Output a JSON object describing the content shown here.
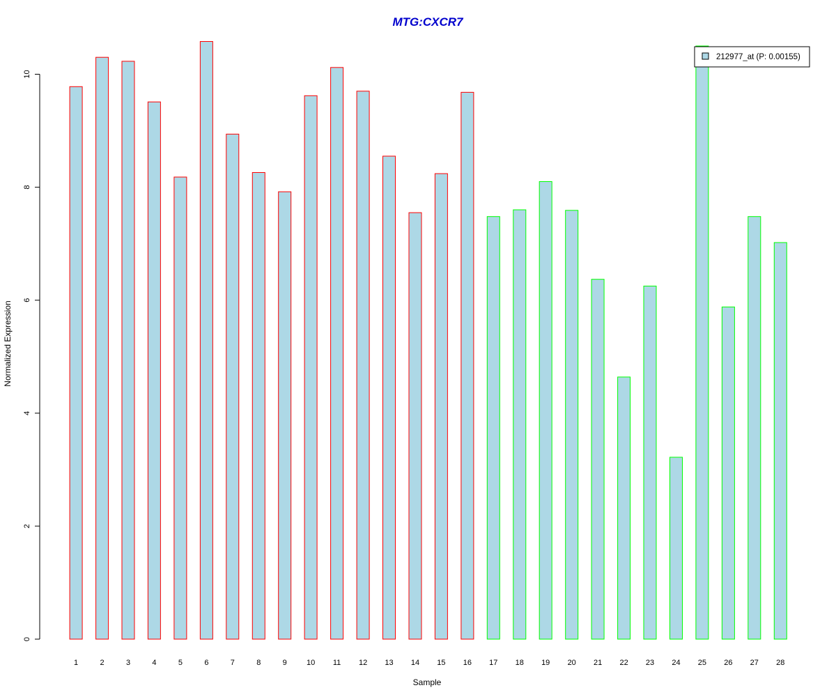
{
  "chart_data": {
    "type": "bar",
    "title": "MTG:CXCR7",
    "xlabel": "Sample",
    "ylabel": "Normalized Expression",
    "ylim": [
      0,
      10.6
    ],
    "yticks": [
      0,
      2,
      4,
      6,
      8,
      10
    ],
    "categories": [
      "1",
      "2",
      "3",
      "4",
      "5",
      "6",
      "7",
      "8",
      "9",
      "10",
      "11",
      "12",
      "13",
      "14",
      "15",
      "16",
      "17",
      "18",
      "19",
      "20",
      "21",
      "22",
      "23",
      "24",
      "25",
      "26",
      "27",
      "28"
    ],
    "series": [
      {
        "name": "212977_at (P: 0.00155)",
        "values": [
          9.78,
          10.3,
          10.23,
          9.51,
          8.18,
          10.58,
          8.94,
          8.26,
          7.92,
          9.62,
          10.12,
          9.7,
          8.55,
          7.55,
          8.24,
          9.68,
          7.48,
          7.6,
          8.1,
          7.59,
          6.37,
          4.64,
          6.25,
          3.22,
          10.5,
          5.88,
          7.48,
          7.02
        ]
      }
    ],
    "fill_color": "#add8e6",
    "group_border_colors": [
      "#ff0000",
      "#00ff00"
    ],
    "group_sizes": [
      16,
      12
    ],
    "legend_position": "top-right",
    "title_color": "#0000cd",
    "grid": false
  }
}
